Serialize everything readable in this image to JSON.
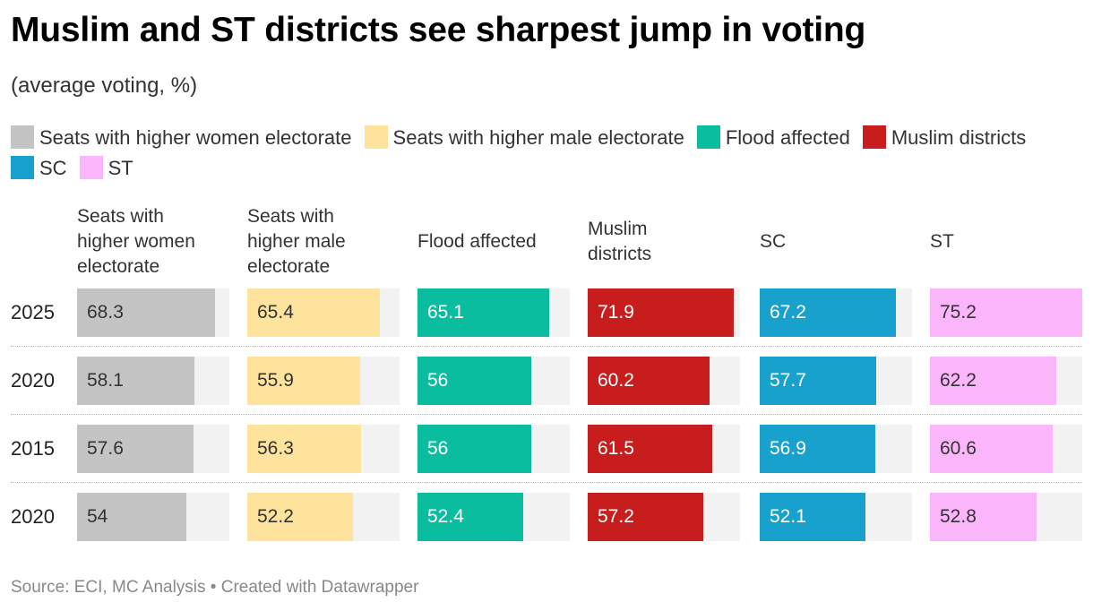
{
  "title": "Muslim and ST districts see sharpest jump in voting",
  "subtitle": "(average voting, %)",
  "source": "Source: ECI, MC Analysis • Created with Datawrapper",
  "chart_data": {
    "type": "bar",
    "layout": "small-multiples horizontal bars",
    "xlim": [
      0,
      75.2
    ],
    "categories": [
      "2025",
      "2020",
      "2015",
      "2020"
    ],
    "series": [
      {
        "name": "Seats with higher women electorate",
        "color": "#c4c4c4",
        "values": [
          68.3,
          58.1,
          57.6,
          54
        ]
      },
      {
        "name": "Seats with higher male electorate",
        "color": "#fee39c",
        "values": [
          65.4,
          55.9,
          56.3,
          52.2
        ]
      },
      {
        "name": "Flood affected",
        "color": "#0bbd9f",
        "values": [
          65.1,
          56,
          56,
          52.4
        ]
      },
      {
        "name": "Muslim districts",
        "color": "#c71e1d",
        "values": [
          71.9,
          60.2,
          61.5,
          57.2
        ]
      },
      {
        "name": "SC",
        "color": "#18a1cd",
        "values": [
          67.2,
          57.7,
          56.9,
          52.1
        ]
      },
      {
        "name": "ST",
        "color": "#fbb6fb",
        "values": [
          75.2,
          62.2,
          60.6,
          52.8
        ]
      }
    ],
    "light_labels": [
      false,
      false,
      true,
      true,
      true,
      false
    ],
    "track_color": "#f2f2f2"
  }
}
